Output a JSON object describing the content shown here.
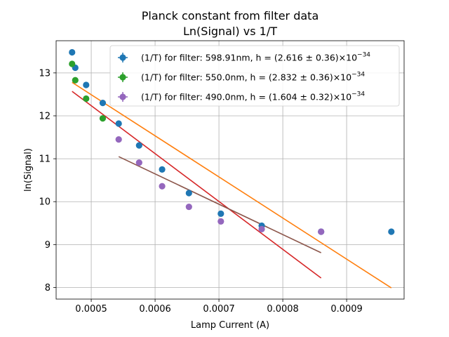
{
  "chart_data": {
    "type": "scatter",
    "title_line1": "Planck constant from filter data",
    "title_line2": "Ln(Signal) vs 1/T",
    "xlabel": "Lamp Current (A)",
    "ylabel": "ln(Signal)",
    "xlim": [
      0.000445,
      0.00099
    ],
    "ylim": [
      7.73,
      13.75
    ],
    "xticks": [
      0.0005,
      0.0006,
      0.0007,
      0.0008,
      0.0009
    ],
    "xtick_labels": [
      "0.0005",
      "0.0006",
      "0.0007",
      "0.0008",
      "0.0009"
    ],
    "yticks": [
      8,
      9,
      10,
      11,
      12,
      13
    ],
    "ytick_labels": [
      "8",
      "9",
      "10",
      "11",
      "12",
      "13"
    ],
    "grid": true,
    "legend_position": "top-right",
    "series": [
      {
        "name": "(1/T) for filter: 598.91nm, h = (2.616 ± 0.36)×10",
        "name_exp": "−34",
        "color": "#1f77b4",
        "x": [
          0.00047,
          0.000475,
          0.000492,
          0.000518,
          0.000543,
          0.000575,
          0.000611,
          0.000653,
          0.000703,
          0.000767,
          0.00086,
          0.00097
        ],
        "y": [
          13.48,
          13.12,
          12.72,
          12.3,
          11.82,
          11.31,
          10.75,
          10.2,
          9.72,
          9.44,
          9.3,
          9.3
        ],
        "fit": {
          "x": [
            0.00047,
            0.00097
          ],
          "y": [
            12.78,
            7.99
          ],
          "color": "#ff7f0e"
        }
      },
      {
        "name": "(1/T) for filter: 550.0nm, h = (2.832 ± 0.36)×10",
        "name_exp": "−34",
        "color": "#2ca02c",
        "x": [
          0.00047,
          0.000475,
          0.000492,
          0.000518
        ],
        "y": [
          13.21,
          12.83,
          12.4,
          11.94
        ],
        "fit": {
          "x": [
            0.00047,
            0.00086
          ],
          "y": [
            12.57,
            8.22
          ],
          "color": "#d62728"
        }
      },
      {
        "name": "(1/T) for filter: 490.0nm, h = (1.604 ± 0.32)×10",
        "name_exp": "−34",
        "color": "#9467bd",
        "x": [
          0.000543,
          0.000575,
          0.000611,
          0.000653,
          0.000703,
          0.000767,
          0.00086
        ],
        "y": [
          11.45,
          10.91,
          10.36,
          9.88,
          9.54,
          9.36,
          9.3
        ],
        "fit": {
          "x": [
            0.000543,
            0.00086
          ],
          "y": [
            11.05,
            8.81
          ],
          "color": "#8c564b"
        }
      }
    ]
  }
}
